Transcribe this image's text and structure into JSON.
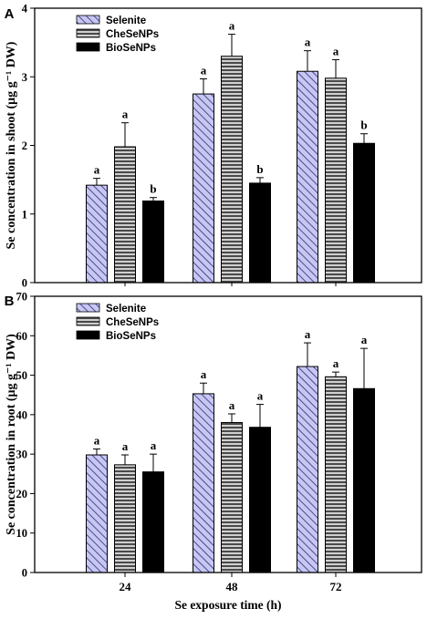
{
  "chart_data": [
    {
      "panel": "A",
      "type": "bar",
      "categories": [
        "24",
        "48",
        "72"
      ],
      "ylabel": "Se concentration in shoot (μg g⁻¹ DW)",
      "ylim": [
        0,
        4
      ],
      "yticks": [
        "0",
        "1",
        "2",
        "3",
        "4"
      ],
      "series": [
        {
          "name": "Selenite",
          "values": [
            1.42,
            2.75,
            3.08
          ],
          "errors": [
            0.1,
            0.22,
            0.3
          ],
          "letters": [
            "a",
            "a",
            "a"
          ],
          "color": "#c7c7f2"
        },
        {
          "name": "CheSeNPs",
          "values": [
            1.98,
            3.3,
            2.98
          ],
          "errors": [
            0.35,
            0.32,
            0.27
          ],
          "letters": [
            "a",
            "a",
            "a"
          ],
          "color": "#5a5a5a"
        },
        {
          "name": "BioSeNPs",
          "values": [
            1.19,
            1.45,
            2.03
          ],
          "errors": [
            0.05,
            0.08,
            0.14
          ],
          "letters": [
            "b",
            "b",
            "b"
          ],
          "color": "#000000"
        }
      ],
      "legend": "top-left"
    },
    {
      "panel": "B",
      "type": "bar",
      "categories": [
        "24",
        "48",
        "72"
      ],
      "ylabel": "Se concentration in root (μg g⁻¹ DW)",
      "xlabel": "Se exposure time (h)",
      "ylim": [
        0,
        70
      ],
      "yticks": [
        "0",
        "10",
        "20",
        "30",
        "40",
        "50",
        "60",
        "70"
      ],
      "series": [
        {
          "name": "Selenite",
          "values": [
            29.8,
            45.3,
            52.2
          ],
          "errors": [
            1.5,
            2.7,
            6.0
          ],
          "letters": [
            "a",
            "a",
            "a"
          ],
          "color": "#c7c7f2"
        },
        {
          "name": "CheSeNPs",
          "values": [
            27.3,
            38.0,
            49.6
          ],
          "errors": [
            2.5,
            2.2,
            1.2
          ],
          "letters": [
            "a",
            "a",
            "a"
          ],
          "color": "#5a5a5a"
        },
        {
          "name": "BioSeNPs",
          "values": [
            25.5,
            36.8,
            46.6
          ],
          "errors": [
            4.5,
            5.8,
            10.2
          ],
          "letters": [
            "a",
            "a",
            "a"
          ],
          "color": "#000000"
        }
      ],
      "legend": "top-left"
    }
  ]
}
